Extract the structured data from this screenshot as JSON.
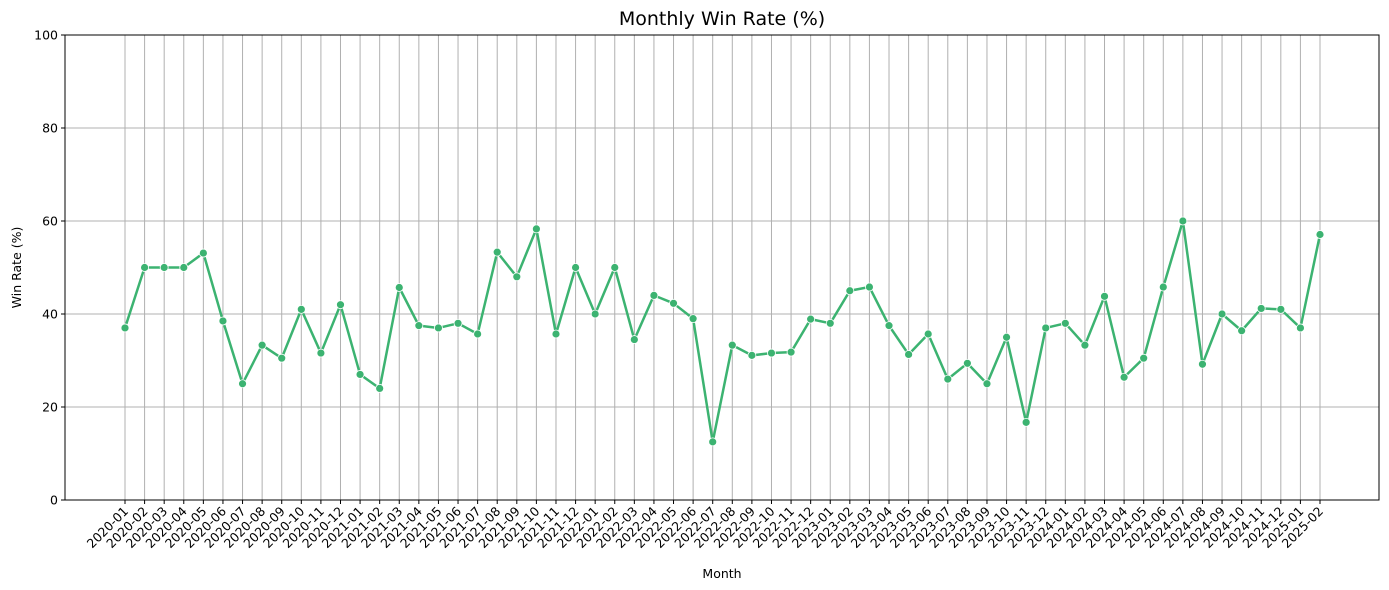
{
  "chart_data": {
    "type": "line",
    "title": "Monthly Win Rate (%)",
    "xlabel": "Month",
    "ylabel": "Win Rate (%)",
    "ylim": [
      0,
      100
    ],
    "yticks": [
      0,
      20,
      40,
      60,
      80,
      100
    ],
    "grid": true,
    "legend": "none",
    "line_color": "#3cb371",
    "grid_color": "#b0b0b0",
    "x": [
      "2020-01",
      "2020-02",
      "2020-03",
      "2020-04",
      "2020-05",
      "2020-06",
      "2020-07",
      "2020-08",
      "2020-09",
      "2020-10",
      "2020-11",
      "2020-12",
      "2021-01",
      "2021-02",
      "2021-03",
      "2021-04",
      "2021-05",
      "2021-06",
      "2021-07",
      "2021-08",
      "2021-09",
      "2021-10",
      "2021-11",
      "2021-12",
      "2022-01",
      "2022-02",
      "2022-03",
      "2022-04",
      "2022-05",
      "2022-06",
      "2022-07",
      "2022-08",
      "2022-09",
      "2022-10",
      "2022-11",
      "2022-12",
      "2023-01",
      "2023-02",
      "2023-03",
      "2023-04",
      "2023-05",
      "2023-06",
      "2023-07",
      "2023-08",
      "2023-09",
      "2023-10",
      "2023-11",
      "2023-12",
      "2024-01",
      "2024-02",
      "2024-03",
      "2024-04",
      "2024-05",
      "2024-06",
      "2024-07",
      "2024-08",
      "2024-09",
      "2024-10",
      "2024-11",
      "2024-12",
      "2025-01",
      "2025-02"
    ],
    "series": [
      {
        "values": [
          37,
          50,
          50,
          50,
          53.1,
          38.5,
          25,
          33.3,
          30.5,
          41,
          31.6,
          42,
          27,
          24,
          45.7,
          37.5,
          37,
          38,
          35.7,
          53.3,
          48,
          58.3,
          35.7,
          50,
          40,
          50,
          34.5,
          44,
          42.3,
          39,
          12.5,
          33.3,
          31.1,
          31.6,
          31.8,
          38.9,
          38,
          45,
          45.8,
          37.5,
          31.3,
          35.7,
          26,
          29.4,
          25,
          35,
          16.7,
          37,
          38,
          33.3,
          43.8,
          26.4,
          30.5,
          45.8,
          60,
          29.2,
          40,
          36.4,
          41.2,
          41,
          37,
          57.1
        ]
      }
    ]
  }
}
